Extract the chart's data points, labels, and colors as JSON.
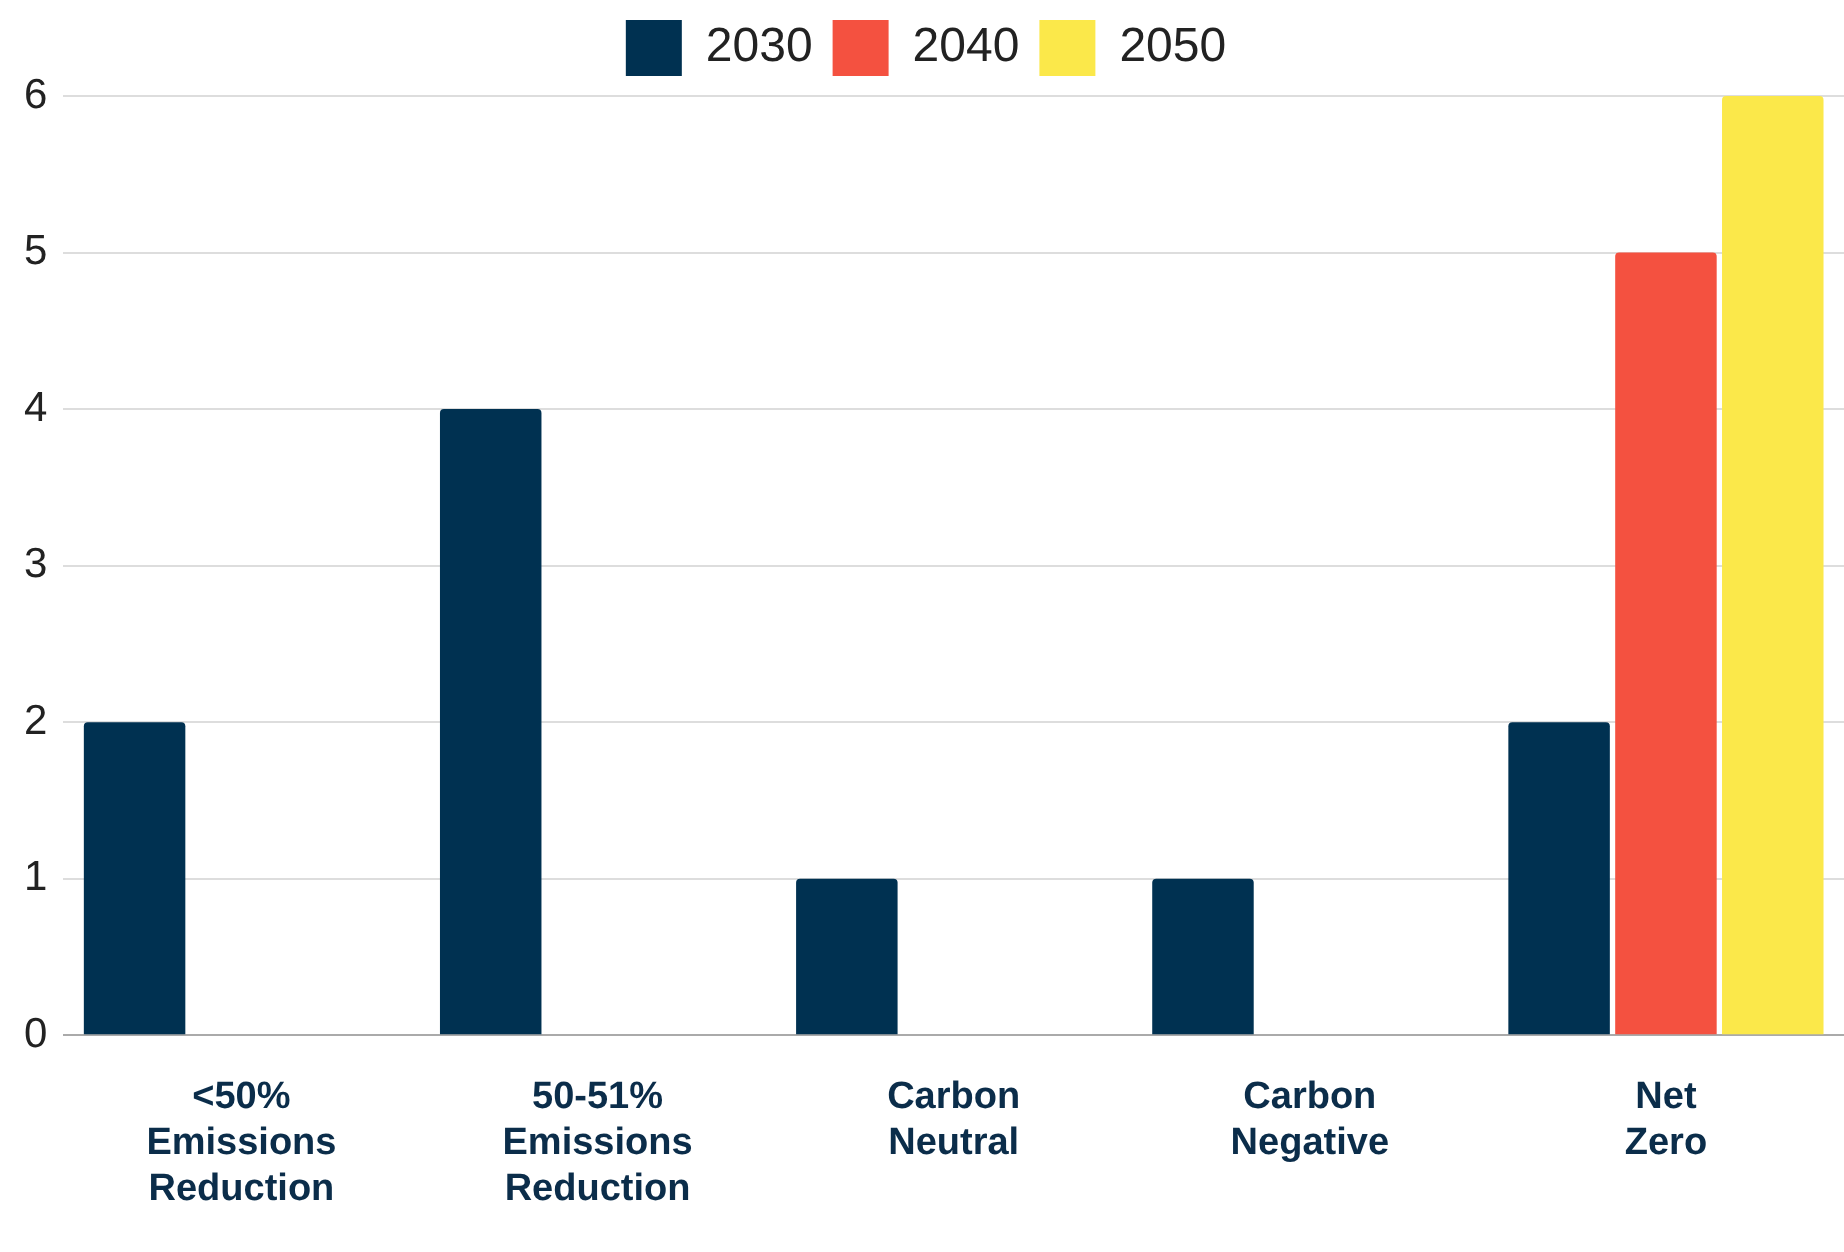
{
  "chart_data": {
    "type": "bar",
    "categories": [
      "<50% Emissions Reduction",
      "50-51% Emissions Reduction",
      "Carbon Neutral",
      "Carbon Negative",
      "Net Zero"
    ],
    "series": [
      {
        "name": "2030",
        "color": "#003151",
        "values": [
          2,
          4,
          1,
          1,
          2
        ]
      },
      {
        "name": "2040",
        "color": "#f45140",
        "values": [
          null,
          null,
          null,
          null,
          5
        ]
      },
      {
        "name": "2050",
        "color": "#fbe84a",
        "values": [
          null,
          null,
          null,
          null,
          6
        ]
      }
    ],
    "ylim": [
      0,
      6
    ],
    "yticks": [
      0,
      1,
      2,
      3,
      4,
      5,
      6
    ],
    "grid": "y",
    "legend": "top"
  }
}
